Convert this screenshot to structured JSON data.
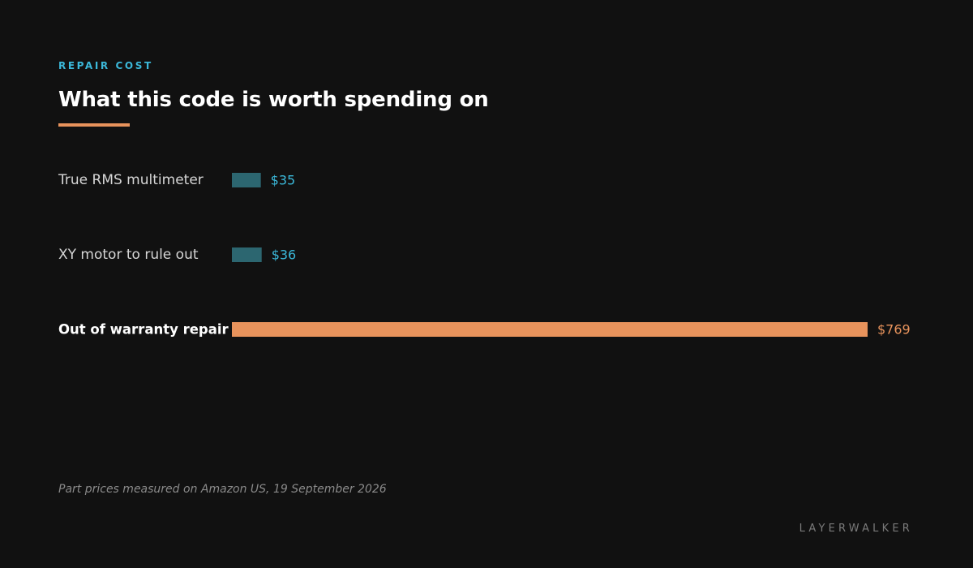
{
  "header": {
    "eyebrow": "REPAIR COST",
    "title": "What this code is worth spending on"
  },
  "chart_data": {
    "type": "bar",
    "orientation": "horizontal",
    "categories": [
      "True RMS multimeter",
      "XY motor to rule out",
      "Out of warranty repair"
    ],
    "values": [
      35,
      36,
      769
    ],
    "value_labels": [
      "$35",
      "$36",
      "$769"
    ],
    "highlight_index": 2,
    "xlim": [
      0,
      769
    ],
    "grid": false
  },
  "footer": {
    "note": "Part prices measured on Amazon US, 19 September 2026",
    "brand": "LAYERWALKER"
  },
  "colors": {
    "background": "#111111",
    "accent_blue": "#3bb8d9",
    "bar_muted": "#2c6670",
    "highlight": "#e8935c",
    "label_muted": "#d6d6d6",
    "label_strong": "#ffffff"
  }
}
